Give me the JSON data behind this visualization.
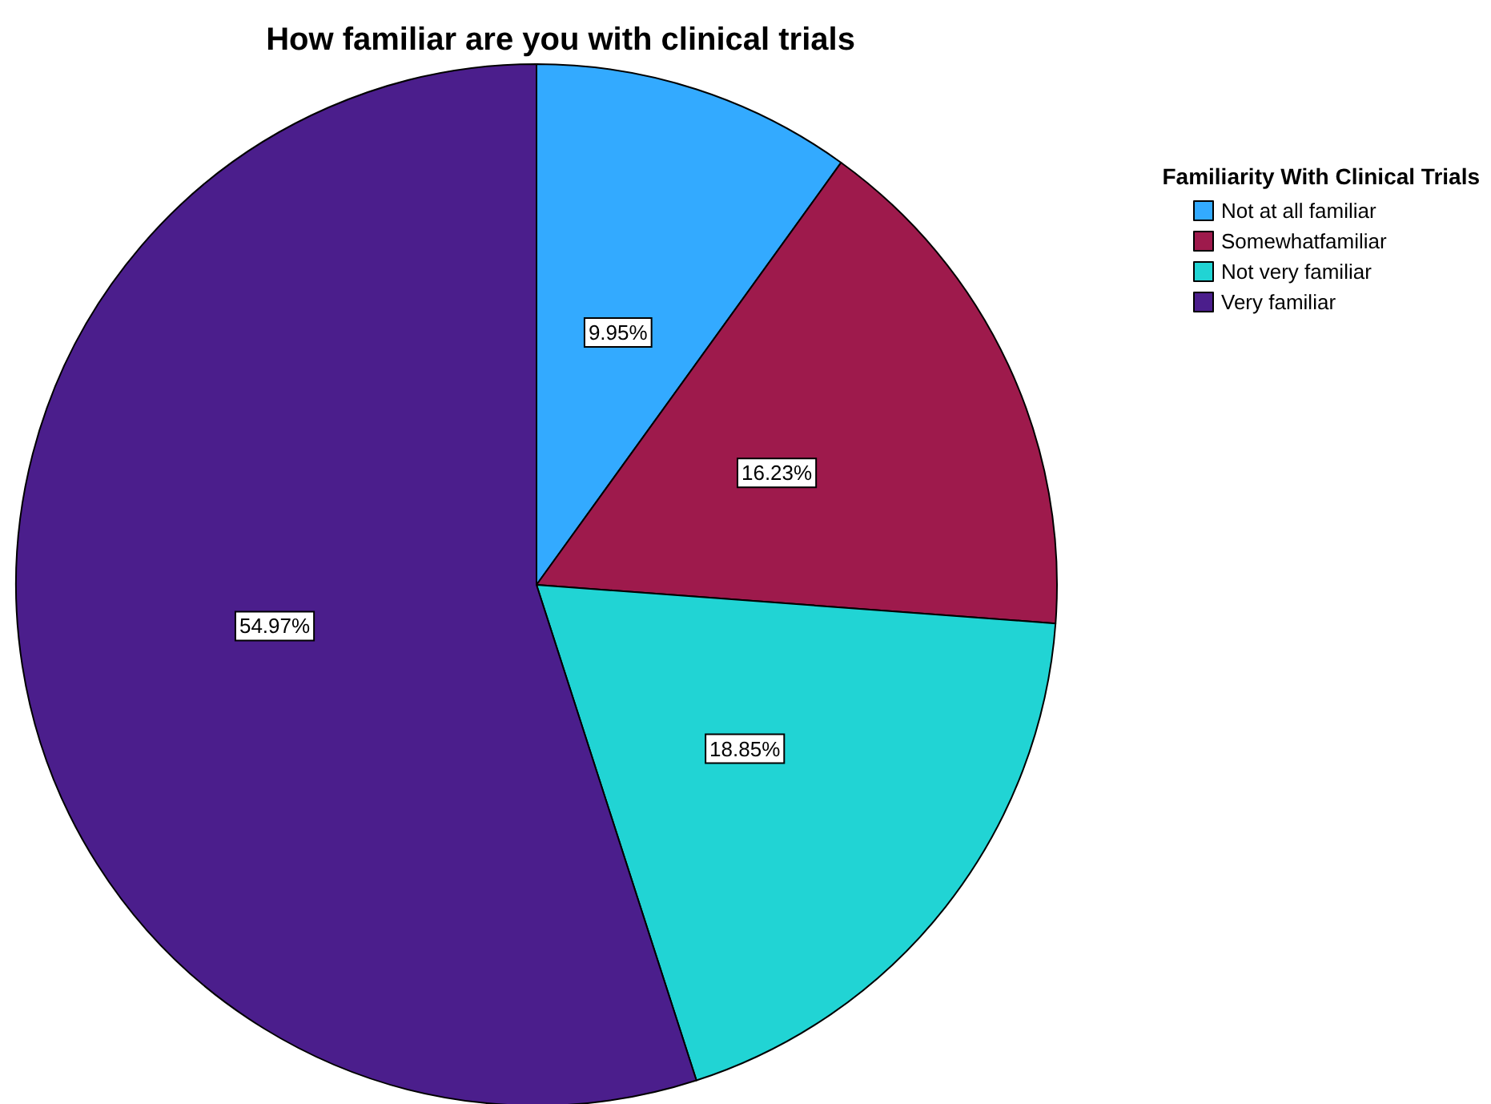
{
  "chart_data": {
    "type": "pie",
    "title": "How familiar are you with clinical trials",
    "legend_title": "Familiarity With Clinical Trials",
    "legend": "top right",
    "categories": [
      "Not at all familiar",
      "Somewhatfamiliar",
      "Not very familiar",
      "Very familiar"
    ],
    "values": [
      9.95,
      16.23,
      18.85,
      54.97
    ],
    "colors": [
      "#33aaff",
      "#9e1a4c",
      "#21d4d4",
      "#4b1e8c"
    ],
    "value_labels": [
      "9.95%",
      "16.23%",
      "18.85%",
      "54.97%"
    ]
  }
}
